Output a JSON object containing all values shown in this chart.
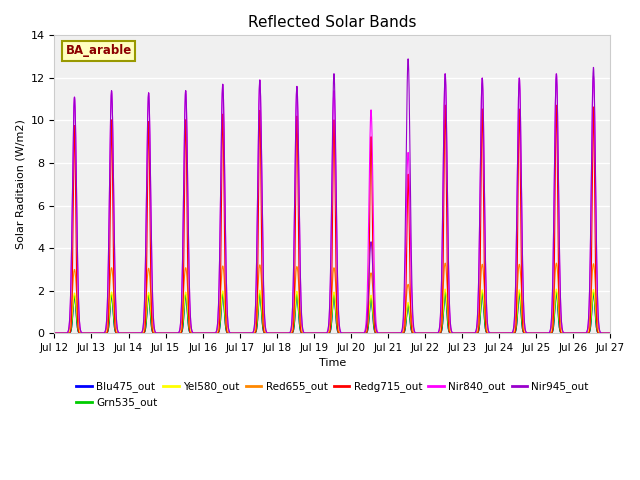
{
  "title": "Reflected Solar Bands",
  "ylabel": "Solar Raditaion (W/m2)",
  "xlabel": "Time",
  "ylim": [
    0,
    14
  ],
  "plot_bg_color": "#f0f0f0",
  "fig_bg_color": "#ffffff",
  "annotation_text": "BA_arable",
  "annotation_color": "#8b0000",
  "annotation_bg": "#ffffc0",
  "annotation_edge": "#999900",
  "series": [
    {
      "label": "Blu475_out",
      "color": "#0000ff",
      "peak_scale": 0.155,
      "sigma": 0.04
    },
    {
      "label": "Grn535_out",
      "color": "#00cc00",
      "peak_scale": 0.16,
      "sigma": 0.04
    },
    {
      "label": "Yel580_out",
      "color": "#ffff00",
      "peak_scale": 0.17,
      "sigma": 0.05
    },
    {
      "label": "Red655_out",
      "color": "#ff8800",
      "peak_scale": 0.27,
      "sigma": 0.06
    },
    {
      "label": "Redg715_out",
      "color": "#ff0000",
      "peak_scale": 0.88,
      "sigma": 0.035
    },
    {
      "label": "Nir840_out",
      "color": "#ff00ff",
      "peak_scale": 1.0,
      "sigma": 0.055
    },
    {
      "label": "Nir945_out",
      "color": "#9900cc",
      "peak_scale": 1.0,
      "sigma": 0.055
    }
  ],
  "start_day": 12,
  "end_day": 27,
  "n_days": 15,
  "points_per_day": 200,
  "peak_hour": 13.0,
  "base_peak": [
    11.1,
    11.4,
    11.3,
    11.4,
    11.7,
    11.9,
    11.6,
    11.4,
    10.5,
    8.5,
    12.2,
    12.0,
    12.0,
    12.2,
    12.1
  ],
  "nir945_peaks": [
    11.1,
    11.4,
    11.3,
    11.4,
    11.7,
    11.9,
    11.6,
    12.2,
    4.3,
    12.9,
    12.2,
    12.0,
    12.0,
    12.2,
    12.5
  ],
  "grid_color": "#ffffff",
  "grid_lw": 1.0
}
